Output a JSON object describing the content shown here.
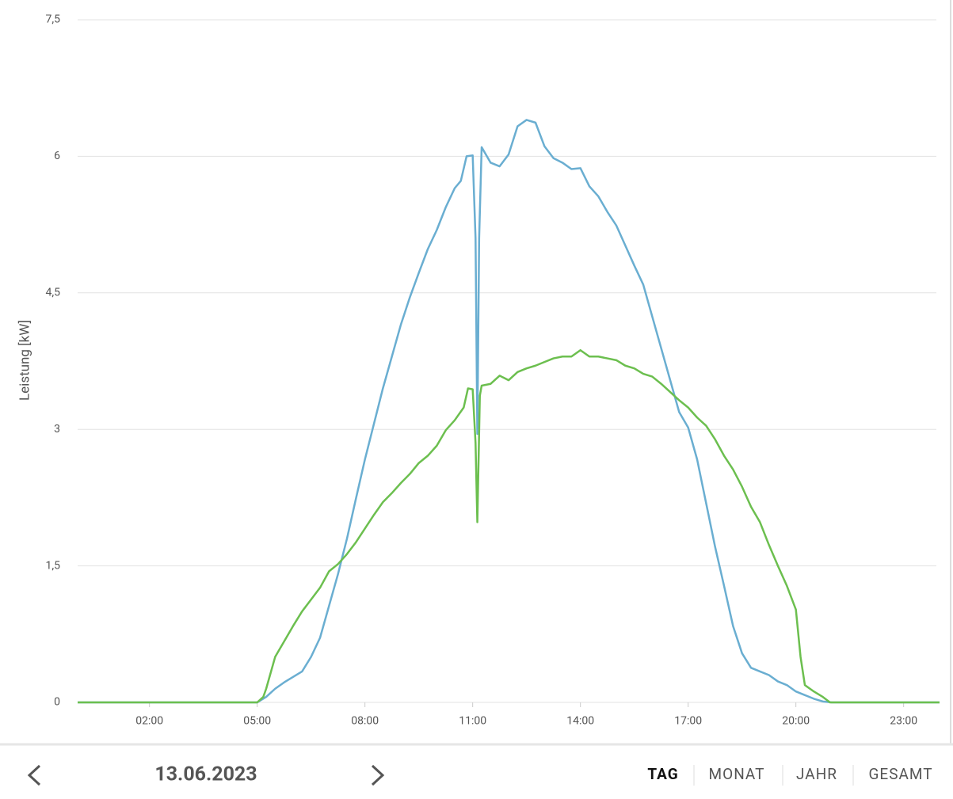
{
  "chart_data": {
    "type": "line",
    "y_label": "Leistung [kW]",
    "xlim": [
      0,
      24
    ],
    "xticks": [
      {
        "value": 2,
        "label": "02:00"
      },
      {
        "value": 5,
        "label": "05:00"
      },
      {
        "value": 8,
        "label": "08:00"
      },
      {
        "value": 11,
        "label": "11:00"
      },
      {
        "value": 14,
        "label": "14:00"
      },
      {
        "value": 17,
        "label": "17:00"
      },
      {
        "value": 20,
        "label": "20:00"
      },
      {
        "value": 23,
        "label": "23:00"
      }
    ],
    "ylim": [
      0,
      7.5
    ],
    "yticks": [
      0,
      {
        "value": 1.5,
        "label": "1,5"
      },
      3,
      {
        "value": 4.5,
        "label": "4,5"
      },
      6,
      {
        "value": 7.5,
        "label": "7,5"
      }
    ],
    "grid": true,
    "series": [
      {
        "color": "#6aaed1",
        "x": [
          0,
          5,
          5.25,
          5.5,
          5.75,
          6,
          6.25,
          6.5,
          6.75,
          7,
          7.25,
          7.5,
          7.75,
          8,
          8.25,
          8.5,
          8.75,
          9,
          9.25,
          9.5,
          9.75,
          10,
          10.25,
          10.5,
          10.67,
          10.83,
          11,
          11.08,
          11.13,
          11.18,
          11.25,
          11.5,
          11.75,
          12,
          12.25,
          12.5,
          12.75,
          13,
          13.25,
          13.5,
          13.75,
          14,
          14.25,
          14.5,
          14.75,
          15,
          15.25,
          15.5,
          15.75,
          16,
          16.25,
          16.5,
          16.75,
          17,
          17.25,
          17.5,
          17.75,
          18,
          18.25,
          18.5,
          18.75,
          19,
          19.25,
          19.5,
          19.75,
          20,
          20.25,
          20.5,
          20.75,
          21,
          24
        ],
        "values": [
          0,
          0,
          0.06,
          0.15,
          0.22,
          0.28,
          0.34,
          0.5,
          0.71,
          1.06,
          1.41,
          1.8,
          2.24,
          2.67,
          3.06,
          3.45,
          3.8,
          4.15,
          4.45,
          4.72,
          4.98,
          5.19,
          5.44,
          5.65,
          5.73,
          6.0,
          6.01,
          5.1,
          2.95,
          5.1,
          6.1,
          5.93,
          5.89,
          6.02,
          6.33,
          6.4,
          6.37,
          6.11,
          5.98,
          5.93,
          5.86,
          5.87,
          5.67,
          5.56,
          5.39,
          5.24,
          5.02,
          4.8,
          4.59,
          4.24,
          3.89,
          3.54,
          3.19,
          3.02,
          2.67,
          2.19,
          1.71,
          1.28,
          0.84,
          0.54,
          0.38,
          0.34,
          0.3,
          0.23,
          0.19,
          0.12,
          0.08,
          0.04,
          0.01,
          0,
          0
        ]
      },
      {
        "color": "#6cbf4f",
        "x": [
          0,
          5,
          5.17,
          5.25,
          5.5,
          5.75,
          6,
          6.25,
          6.5,
          6.75,
          7,
          7.25,
          7.5,
          7.75,
          8,
          8.25,
          8.5,
          8.75,
          9,
          9.25,
          9.5,
          9.75,
          10,
          10.25,
          10.5,
          10.75,
          10.87,
          11,
          11.08,
          11.13,
          11.2,
          11.25,
          11.5,
          11.75,
          12,
          12.25,
          12.5,
          12.75,
          13,
          13.25,
          13.5,
          13.75,
          14,
          14.25,
          14.5,
          14.75,
          15,
          15.25,
          15.5,
          15.75,
          16,
          16.25,
          16.5,
          16.75,
          17,
          17.25,
          17.5,
          17.75,
          18,
          18.25,
          18.5,
          18.75,
          19,
          19.25,
          19.5,
          19.75,
          20,
          20.13,
          20.25,
          20.5,
          20.75,
          20.95,
          24
        ],
        "values": [
          0,
          0,
          0.06,
          0.15,
          0.5,
          0.67,
          0.84,
          1.0,
          1.13,
          1.26,
          1.44,
          1.52,
          1.63,
          1.76,
          1.91,
          2.06,
          2.2,
          2.3,
          2.41,
          2.51,
          2.63,
          2.71,
          2.82,
          2.99,
          3.1,
          3.24,
          3.45,
          3.44,
          2.85,
          1.98,
          3.37,
          3.48,
          3.5,
          3.59,
          3.54,
          3.63,
          3.67,
          3.7,
          3.74,
          3.78,
          3.8,
          3.8,
          3.87,
          3.8,
          3.8,
          3.78,
          3.76,
          3.7,
          3.67,
          3.61,
          3.58,
          3.5,
          3.41,
          3.32,
          3.24,
          3.13,
          3.04,
          2.89,
          2.71,
          2.56,
          2.37,
          2.15,
          1.98,
          1.73,
          1.5,
          1.28,
          1.02,
          0.5,
          0.19,
          0.12,
          0.06,
          0,
          0
        ]
      }
    ]
  },
  "nav": {
    "date": "13.06.2023",
    "tabs": [
      "TAG",
      "MONAT",
      "JAHR",
      "GESAMT"
    ]
  }
}
